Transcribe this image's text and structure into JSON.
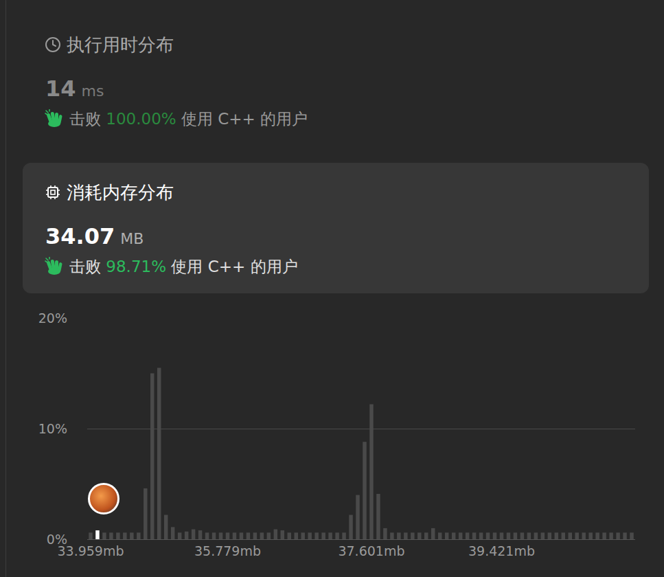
{
  "runtime": {
    "title": "执行用时分布",
    "value": "14",
    "unit": "ms",
    "beat_prefix": "击败",
    "beat": "100.00%",
    "beat_suffix": "使用 C++ 的用户"
  },
  "memory": {
    "title": "消耗内存分布",
    "value": "34.07",
    "unit": "MB",
    "beat_prefix": "击败",
    "beat": "98.71%",
    "beat_suffix": "使用 C++ 的用户"
  },
  "chart_data": {
    "type": "bar",
    "categories": [
      "33.959mb",
      null,
      null,
      null,
      null,
      null,
      null,
      null,
      null,
      null,
      null,
      null,
      null,
      null,
      null,
      null,
      null,
      null,
      null,
      null,
      "35.779mb",
      null,
      null,
      null,
      null,
      null,
      null,
      null,
      null,
      null,
      null,
      null,
      null,
      null,
      null,
      null,
      null,
      null,
      null,
      null,
      null,
      "37.601mb",
      null,
      null,
      null,
      null,
      null,
      null,
      null,
      null,
      null,
      null,
      null,
      null,
      null,
      null,
      null,
      null,
      null,
      null,
      "39.421mb",
      null,
      null,
      null,
      null,
      null,
      null,
      null,
      null,
      null,
      null,
      null,
      null,
      null,
      null,
      null,
      null,
      null,
      null,
      null
    ],
    "values": [
      0.6,
      0.8,
      0.6,
      0.6,
      0.6,
      0.6,
      0.6,
      0.6,
      4.6,
      15,
      15.5,
      2.2,
      1.1,
      0.6,
      0.7,
      0.9,
      0.8,
      0.6,
      0.6,
      0.6,
      0.6,
      0.6,
      0.6,
      0.6,
      0.6,
      0.6,
      0.6,
      0.9,
      0.8,
      0.6,
      0.6,
      0.6,
      0.6,
      0.6,
      0.6,
      0.6,
      0.6,
      0.6,
      2.2,
      4.0,
      8.8,
      12.2,
      4.1,
      1.0,
      0.6,
      0.6,
      0.6,
      0.6,
      0.6,
      0.6,
      1.0,
      0.6,
      0.6,
      0.6,
      0.6,
      0.6,
      0.6,
      0.6,
      0.6,
      0.6,
      0.6,
      0.6,
      0.6,
      0.6,
      0.6,
      0.6,
      0.6,
      0.6,
      0.6,
      0.6,
      0.6,
      0.6,
      0.6,
      0.6,
      0.6,
      0.6,
      0.6,
      0.6,
      0.6,
      0.6
    ],
    "colors": [
      "#4a4a4a",
      "#ffffff",
      "#4a4a4a",
      "#4a4a4a",
      "#4a4a4a",
      "#4a4a4a",
      "#4a4a4a",
      "#4a4a4a",
      "#4a4a4a",
      "#4a4a4a",
      "#4a4a4a",
      "#4a4a4a",
      "#4a4a4a",
      "#4a4a4a",
      "#4a4a4a",
      "#4a4a4a",
      "#4a4a4a",
      "#4a4a4a",
      "#4a4a4a",
      "#4a4a4a",
      "#4a4a4a",
      "#4a4a4a",
      "#4a4a4a",
      "#4a4a4a",
      "#4a4a4a",
      "#4a4a4a",
      "#4a4a4a",
      "#4a4a4a",
      "#4a4a4a",
      "#4a4a4a",
      "#4a4a4a",
      "#4a4a4a",
      "#4a4a4a",
      "#4a4a4a",
      "#4a4a4a",
      "#4a4a4a",
      "#4a4a4a",
      "#4a4a4a",
      "#4a4a4a",
      "#4a4a4a",
      "#4a4a4a",
      "#4a4a4a",
      "#4a4a4a",
      "#4a4a4a",
      "#4a4a4a",
      "#4a4a4a",
      "#4a4a4a",
      "#4a4a4a",
      "#4a4a4a",
      "#4a4a4a",
      "#4a4a4a",
      "#4a4a4a",
      "#4a4a4a",
      "#4a4a4a",
      "#4a4a4a",
      "#4a4a4a",
      "#4a4a4a",
      "#4a4a4a",
      "#4a4a4a",
      "#4a4a4a",
      "#4a4a4a",
      "#4a4a4a",
      "#4a4a4a",
      "#4a4a4a",
      "#4a4a4a",
      "#4a4a4a",
      "#4a4a4a",
      "#4a4a4a",
      "#4a4a4a",
      "#4a4a4a",
      "#4a4a4a",
      "#4a4a4a",
      "#4a4a4a",
      "#4a4a4a",
      "#4a4a4a",
      "#4a4a4a",
      "#4a4a4a",
      "#4a4a4a",
      "#4a4a4a",
      "#4a4a4a"
    ],
    "ylim": [
      0,
      20
    ],
    "yticks": [
      {
        "value": 0,
        "label": "0%"
      },
      {
        "value": 10,
        "label": "10%"
      },
      {
        "value": 20,
        "label": "20%"
      }
    ],
    "grid": true
  }
}
